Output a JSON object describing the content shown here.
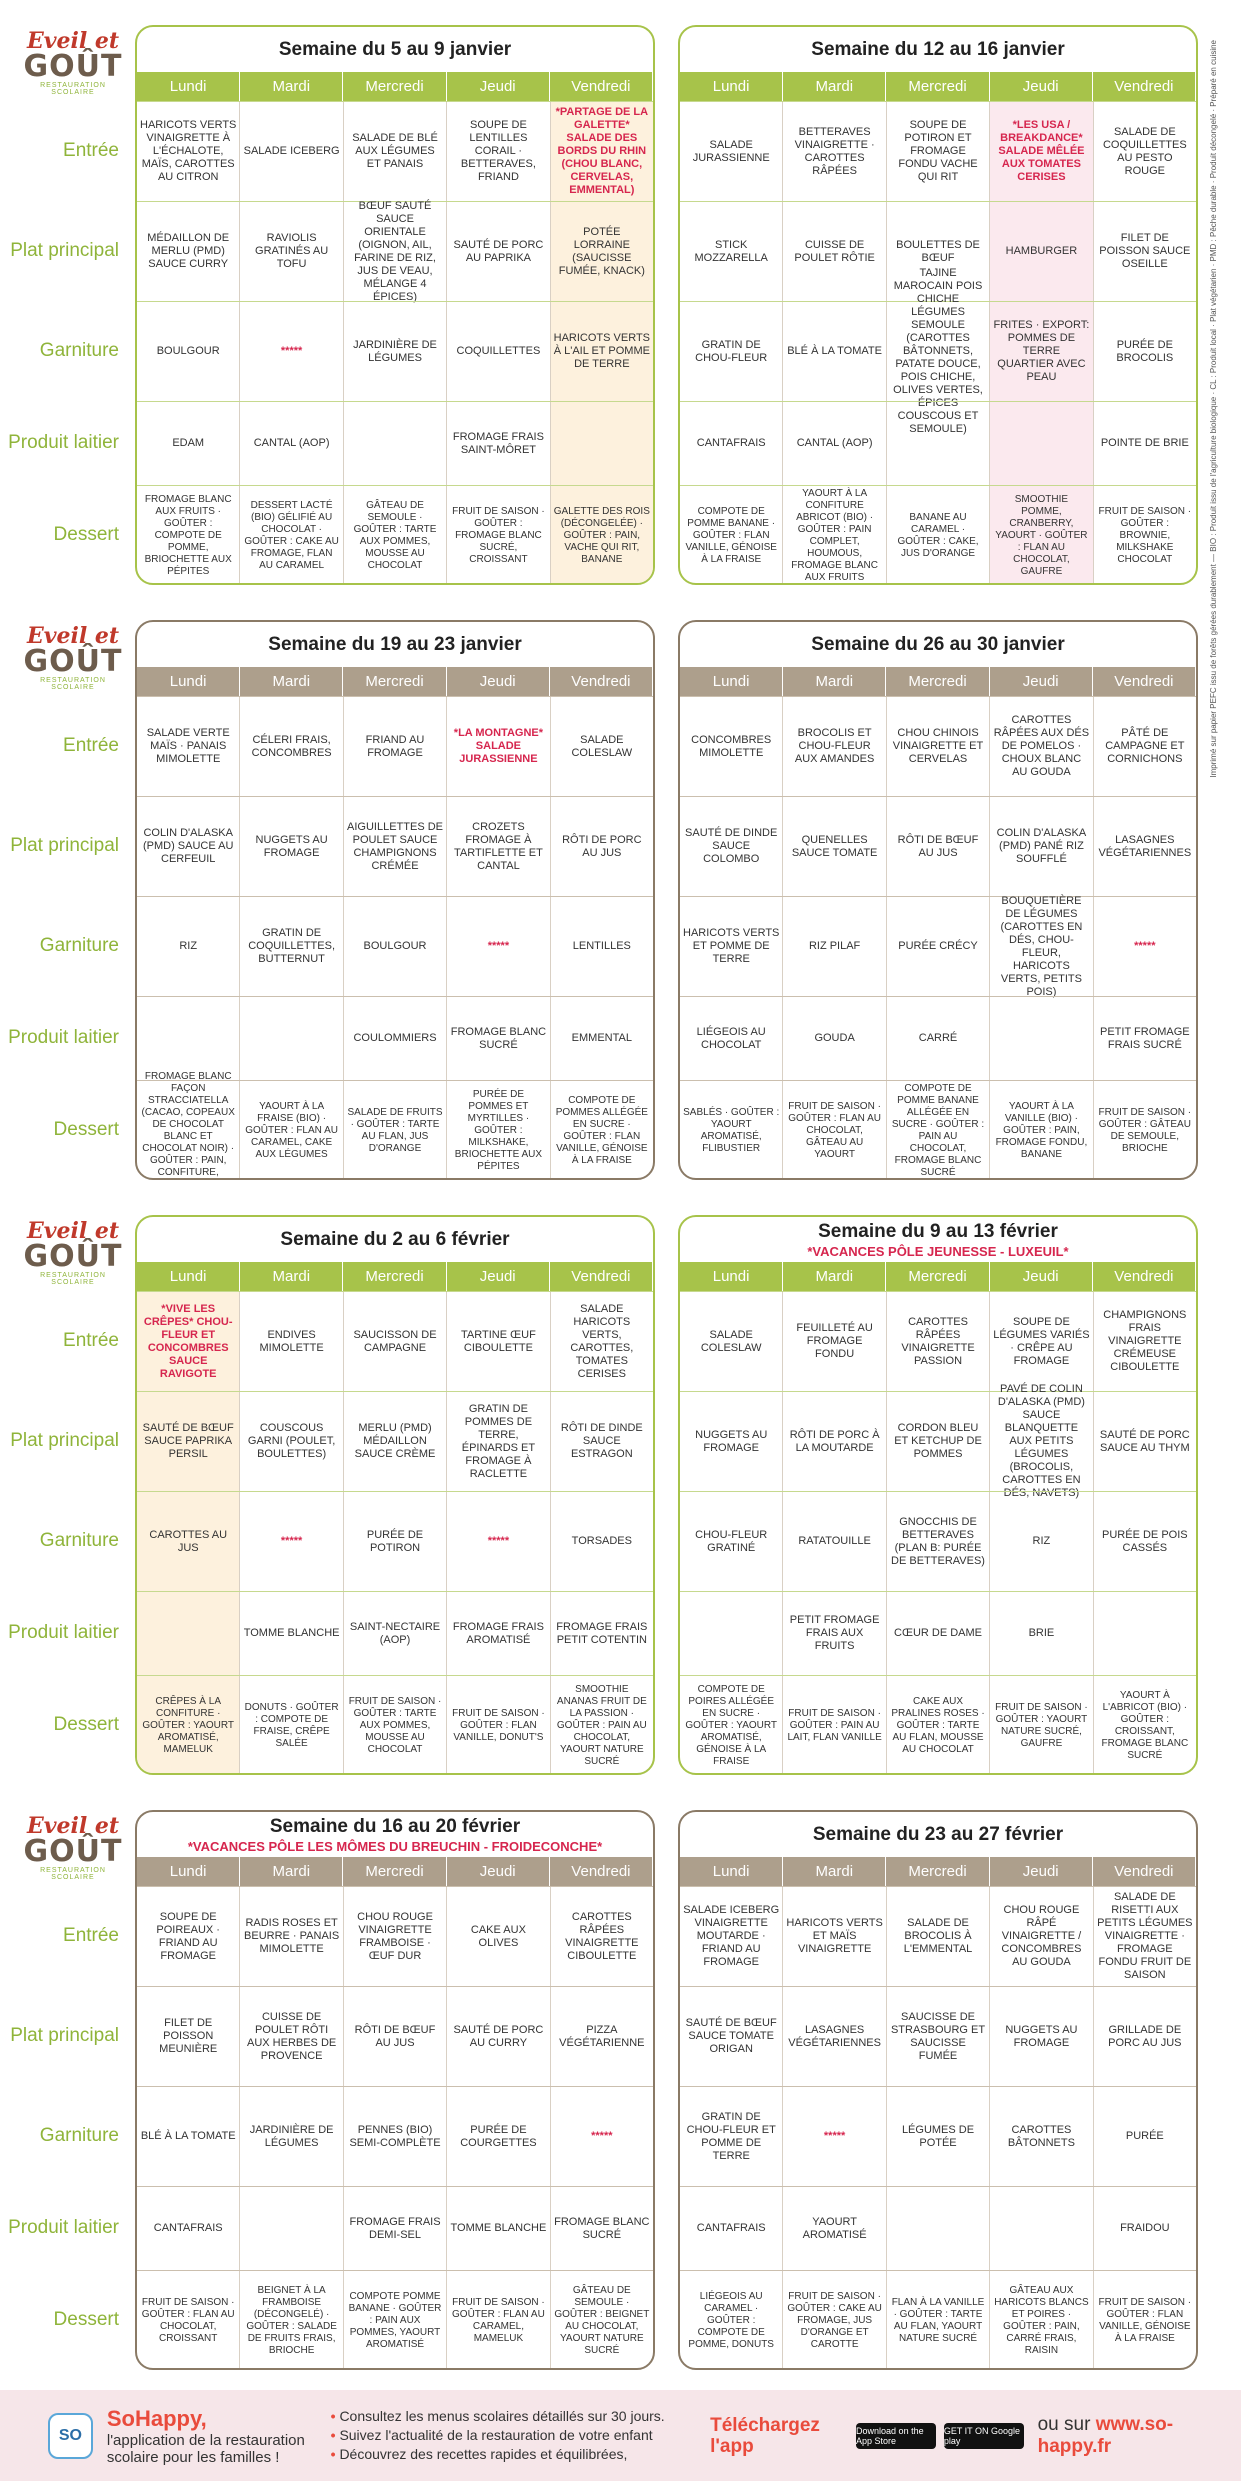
{
  "brand": {
    "l1": "Eveil et",
    "l2": "GOÛT",
    "l3": "RESTAURATION SCOLAIRE"
  },
  "categories": [
    "Entrée",
    "Plat principal",
    "Garniture",
    "Produit laitier",
    "Dessert"
  ],
  "days": [
    "Lundi",
    "Mardi",
    "Mercredi",
    "Jeudi",
    "Vendredi"
  ],
  "side_text": "Imprimé sur papier PEFC issu de forêts gérées durablement",
  "legend": "BIO : Produit issu de l'agriculture biologique · CL : Produit local · Plat végétarien · PMD : Pêche durable · Produit décongelé · Préparé en cuisine",
  "weeks": [
    {
      "title": "Semaine du 5 au 9 janvier",
      "sub": "",
      "rows": [
        [
          "HARICOTS VERTS VINAIGRETTE À L'ÉCHALOTE, MAÏS, CAROTTES AU CITRON",
          "SALADE ICEBERG",
          "SALADE DE BLÉ AUX LÉGUMES ET PANAIS",
          "SOUPE DE LENTILLES CORAIL · BETTERAVES, FRIAND",
          "*PARTAGE DE LA GALETTE* SALADE DES BORDS DU RHIN (CHOU BLANC, CERVELAS, EMMENTAL)"
        ],
        [
          "MÉDAILLON DE MERLU (PMD) SAUCE CURRY",
          "RAVIOLIS GRATINÉS AU TOFU",
          "BŒUF SAUTÉ SAUCE ORIENTALE (OIGNON, AIL, FARINE DE RIZ, JUS DE VEAU, MÉLANGE 4 ÉPICES)",
          "SAUTÉ DE PORC AU PAPRIKA",
          "POTÉE LORRAINE (SAUCISSE FUMÉE, KNACK)"
        ],
        [
          "BOULGOUR",
          "*****",
          "JARDINIÈRE DE LÉGUMES",
          "COQUILLETTES",
          "HARICOTS VERTS À L'AIL ET POMME DE TERRE"
        ],
        [
          "EDAM",
          "CANTAL (AOP)",
          "",
          "FROMAGE FRAIS SAINT-MÔRET",
          ""
        ],
        [
          "FROMAGE BLANC AUX FRUITS · GOÛTER : COMPOTE DE POMME, BRIOCHETTE AUX PÉPITES",
          "DESSERT LACTÉ (BIO) GÉLIFIÉ AU CHOCOLAT · GOÛTER : CAKE AU FROMAGE, FLAN AU CARAMEL",
          "GÂTEAU DE SEMOULE · GOÛTER : TARTE AUX POMMES, MOUSSE AU CHOCOLAT",
          "FRUIT DE SAISON · GOÛTER : FROMAGE BLANC SUCRÉ, CROISSANT",
          "GALETTE DES ROIS (DÉCONGELÉE) · GOÛTER : PAIN, VACHE QUI RIT, BANANE"
        ]
      ]
    },
    {
      "title": "Semaine du 12 au 16 janvier",
      "sub": "",
      "rows": [
        [
          "SALADE JURASSIENNE",
          "BETTERAVES VINAIGRETTE · CAROTTES RÂPÉES",
          "SOUPE DE POTIRON ET FROMAGE FONDU VACHE QUI RIT",
          "*LES USA / BREAKDANCE* SALADE MÊLÉE AUX TOMATES CERISES",
          "SALADE DE COQUILLETTES AU PESTO ROUGE"
        ],
        [
          "STICK MOZZARELLA",
          "CUISSE DE POULET RÔTIE",
          "BOULETTES DE BŒUF",
          "HAMBURGER",
          "FILET DE POISSON SAUCE OSEILLE"
        ],
        [
          "GRATIN DE CHOU-FLEUR",
          "BLÉ À LA TOMATE",
          "TAJINE MAROCAIN POIS CHICHE LÉGUMES SEMOULE (CAROTTES BÂTONNETS, PATATE DOUCE, POIS CHICHE, OLIVES VERTES, ÉPICES COUSCOUS ET SEMOULE)",
          "FRITES · EXPORT: POMMES DE TERRE QUARTIER AVEC PEAU",
          "PURÉE DE BROCOLIS"
        ],
        [
          "CANTAFRAIS",
          "CANTAL (AOP)",
          "",
          "",
          "POINTE DE BRIE"
        ],
        [
          "COMPOTE DE POMME BANANE · GOÛTER : FLAN VANILLE, GÉNOISE À LA FRAISE",
          "YAOURT À LA CONFITURE ABRICOT (BIO) · GOÛTER : PAIN COMPLET, HOUMOUS, FROMAGE BLANC AUX FRUITS",
          "BANANE AU CARAMEL · GOÛTER : CAKE, JUS D'ORANGE",
          "SMOOTHIE POMME, CRANBERRY, YAOURT · GOÛTER : FLAN AU CHOCOLAT, GAUFRE",
          "FRUIT DE SAISON · GOÛTER : BROWNIE, MILKSHAKE CHOCOLAT"
        ]
      ]
    },
    {
      "title": "Semaine du 19 au 23 janvier",
      "sub": "",
      "rows": [
        [
          "SALADE VERTE MAÏS · PANAIS MIMOLETTE",
          "CÉLERI FRAIS, CONCOMBRES",
          "FRIAND AU FROMAGE",
          "*LA MONTAGNE* SALADE JURASSIENNE",
          "SALADE COLESLAW"
        ],
        [
          "COLIN D'ALASKA (PMD) SAUCE AU CERFEUIL",
          "NUGGETS AU FROMAGE",
          "AIGUILLETTES DE POULET SAUCE CHAMPIGNONS CRÉMÉE",
          "CROZETS FROMAGE À TARTIFLETTE ET CANTAL",
          "RÔTI DE PORC AU JUS"
        ],
        [
          "RIZ",
          "GRATIN DE COQUILLETTES, BUTTERNUT",
          "BOULGOUR",
          "*****",
          "LENTILLES"
        ],
        [
          "",
          "",
          "COULOMMIERS",
          "FROMAGE BLANC SUCRÉ",
          "EMMENTAL"
        ],
        [
          "FROMAGE BLANC FAÇON STRACCIATELLA (CACAO, COPEAUX DE CHOCOLAT BLANC ET CHOCOLAT NOIR) · GOÛTER : PAIN, CONFITURE, BANANE",
          "YAOURT À LA FRAISE (BIO) · GOÛTER : FLAN AU CARAMEL, CAKE AUX LÉGUMES",
          "SALADE DE FRUITS · GOÛTER : TARTE AU FLAN, JUS D'ORANGE",
          "PURÉE DE POMMES ET MYRTILLES · GOÛTER : MILKSHAKE, BRIOCHETTE AUX PÉPITES",
          "COMPOTE DE POMMES ALLÉGÉE EN SUCRE · GOÛTER : FLAN VANILLE, GÉNOISE À LA FRAISE"
        ]
      ]
    },
    {
      "title": "Semaine du 26 au 30 janvier",
      "sub": "",
      "rows": [
        [
          "CONCOMBRES MIMOLETTE",
          "BROCOLIS ET CHOU-FLEUR AUX AMANDES",
          "CHOU CHINOIS VINAIGRETTE ET CERVELAS",
          "CAROTTES RÂPÉES AUX DÉS DE POMELOS · CHOUX BLANC AU GOUDA",
          "PÂTÉ DE CAMPAGNE ET CORNICHONS"
        ],
        [
          "SAUTÉ DE DINDE SAUCE COLOMBO",
          "QUENELLES SAUCE TOMATE",
          "RÔTI DE BŒUF AU JUS",
          "COLIN D'ALASKA (PMD) PANÉ RIZ SOUFFLÉ",
          "LASAGNES VÉGÉTARIENNES"
        ],
        [
          "HARICOTS VERTS ET POMME DE TERRE",
          "RIZ PILAF",
          "PURÉE CRÉCY",
          "BOUQUETIÈRE DE LÉGUMES (CAROTTES EN DÉS, CHOU-FLEUR, HARICOTS VERTS, PETITS POIS)",
          "*****"
        ],
        [
          "LIÉGEOIS AU CHOCOLAT",
          "GOUDA",
          "CARRÉ",
          "",
          "PETIT FROMAGE FRAIS SUCRÉ"
        ],
        [
          "SABLÉS · GOÛTER : YAOURT AROMATISÉ, FLIBUSTIER",
          "FRUIT DE SAISON · GOÛTER : FLAN AU CHOCOLAT, GÂTEAU AU YAOURT",
          "COMPOTE DE POMME BANANE ALLÉGÉE EN SUCRE · GOÛTER : PAIN AU CHOCOLAT, FROMAGE BLANC SUCRÉ",
          "YAOURT À LA VANILLE (BIO) · GOÛTER : PAIN, FROMAGE FONDU, BANANE",
          "FRUIT DE SAISON · GOÛTER : GÂTEAU DE SEMOULE, BRIOCHE"
        ]
      ]
    },
    {
      "title": "Semaine du 2 au 6 février",
      "sub": "",
      "rows": [
        [
          "*VIVE LES CRÊPES* CHOU-FLEUR ET CONCOMBRES SAUCE RAVIGOTE",
          "ENDIVES MIMOLETTE",
          "SAUCISSON DE CAMPAGNE",
          "TARTINE ŒUF CIBOULETTE",
          "SALADE HARICOTS VERTS, CAROTTES, TOMATES CERISES"
        ],
        [
          "SAUTÉ DE BŒUF SAUCE PAPRIKA PERSIL",
          "COUSCOUS GARNI (POULET, BOULETTES)",
          "MERLU (PMD) MÉDAILLON SAUCE CRÈME",
          "GRATIN DE POMMES DE TERRE, ÉPINARDS ET FROMAGE À RACLETTE",
          "RÔTI DE DINDE SAUCE ESTRAGON"
        ],
        [
          "CAROTTES AU JUS",
          "*****",
          "PURÉE DE POTIRON",
          "*****",
          "TORSADES"
        ],
        [
          "",
          "TOMME BLANCHE",
          "SAINT-NECTAIRE (AOP)",
          "FROMAGE FRAIS AROMATISÉ",
          "FROMAGE FRAIS PETIT COTENTIN"
        ],
        [
          "CRÊPES À LA CONFITURE · GOÛTER : YAOURT AROMATISÉ, MAMELUK",
          "DONUTS · GOÛTER : COMPOTE DE FRAISE, CRÊPE SALÉE",
          "FRUIT DE SAISON · GOÛTER : TARTE AUX POMMES, MOUSSE AU CHOCOLAT",
          "FRUIT DE SAISON · GOÛTER : FLAN VANILLE, DONUT'S",
          "SMOOTHIE ANANAS FRUIT DE LA PASSION · GOÛTER : PAIN AU CHOCOLAT, YAOURT NATURE SUCRÉ"
        ]
      ]
    },
    {
      "title": "Semaine du 9 au 13 février",
      "sub": "*VACANCES PÔLE JEUNESSE - LUXEUIL*",
      "rows": [
        [
          "SALADE COLESLAW",
          "FEUILLETÉ AU FROMAGE FONDU",
          "CAROTTES RÂPÉES VINAIGRETTE PASSION",
          "SOUPE DE LÉGUMES VARIÉS · CRÊPE AU FROMAGE",
          "CHAMPIGNONS FRAIS VINAIGRETTE CRÉMEUSE CIBOULETTE"
        ],
        [
          "NUGGETS AU FROMAGE",
          "RÔTI DE PORC À LA MOUTARDE",
          "CORDON BLEU ET KETCHUP DE POMMES",
          "PAVÉ DE COLIN D'ALASKA (PMD) SAUCE BLANQUETTE AUX PETITS LÉGUMES (BROCOLIS, CAROTTES EN DÉS, NAVETS)",
          "SAUTÉ DE PORC SAUCE AU THYM"
        ],
        [
          "CHOU-FLEUR GRATINÉ",
          "RATATOUILLE",
          "GNOCCHIS DE BETTERAVES (PLAN B: PURÉE DE BETTERAVES)",
          "RIZ",
          "PURÉE DE POIS CASSÉS"
        ],
        [
          "",
          "PETIT FROMAGE FRAIS AUX FRUITS",
          "CŒUR DE DAME",
          "BRIE",
          ""
        ],
        [
          "COMPOTE DE POIRES ALLÉGÉE EN SUCRE · GOÛTER : YAOURT AROMATISÉ, GÉNOISE À LA FRAISE",
          "FRUIT DE SAISON · GOÛTER : PAIN AU LAIT, FLAN VANILLE",
          "CAKE AUX PRALINES ROSES · GOÛTER : TARTE AU FLAN, MOUSSE AU CHOCOLAT",
          "FRUIT DE SAISON · GOÛTER : YAOURT NATURE SUCRÉ, GAUFRE",
          "YAOURT À L'ABRICOT (BIO) · GOÛTER : CROISSANT, FROMAGE BLANC SUCRÉ"
        ]
      ]
    },
    {
      "title": "Semaine du 16 au 20 février",
      "sub": "*VACANCES PÔLE LES MÔMES DU BREUCHIN - FROIDECONCHE*",
      "rows": [
        [
          "SOUPE DE POIREAUX · FRIAND AU FROMAGE",
          "RADIS ROSES ET BEURRE · PANAIS MIMOLETTE",
          "CHOU ROUGE VINAIGRETTE FRAMBOISE · ŒUF DUR",
          "CAKE AUX OLIVES",
          "CAROTTES RÂPÉES VINAIGRETTE CIBOULETTE"
        ],
        [
          "FILET DE POISSON MEUNIÈRE",
          "CUISSE DE POULET RÔTI AUX HERBES DE PROVENCE",
          "RÔTI DE BŒUF AU JUS",
          "SAUTÉ DE PORC AU CURRY",
          "PIZZA VÉGÉTARIENNE"
        ],
        [
          "BLÉ À LA TOMATE",
          "JARDINIÈRE DE LÉGUMES",
          "PENNES (BIO) SEMI-COMPLÈTE",
          "PURÉE DE COURGETTES",
          "*****"
        ],
        [
          "CANTAFRAIS",
          "",
          "FROMAGE FRAIS DEMI-SEL",
          "TOMME BLANCHE",
          "FROMAGE BLANC SUCRÉ"
        ],
        [
          "FRUIT DE SAISON · GOÛTER : FLAN AU CHOCOLAT, CROISSANT",
          "BEIGNET À LA FRAMBOISE (DÉCONGELÉ) · GOÛTER : SALADE DE FRUITS FRAIS, BRIOCHE",
          "COMPOTE POMME BANANE · GOÛTER : PAIN AUX POMMES, YAOURT AROMATISÉ",
          "FRUIT DE SAISON · GOÛTER : FLAN AU CARAMEL, MAMELUK",
          "GÂTEAU DE SEMOULE · GOÛTER : BEIGNET AU CHOCOLAT, YAOURT NATURE SUCRÉ"
        ]
      ]
    },
    {
      "title": "Semaine du 23 au 27 février",
      "sub": "",
      "rows": [
        [
          "SALADE ICEBERG VINAIGRETTE MOUTARDE · FRIAND AU FROMAGE",
          "HARICOTS VERTS ET MAÏS VINAIGRETTE",
          "SALADE DE BROCOLIS À L'EMMENTAL",
          "CHOU ROUGE RÂPÉ VINAIGRETTE / CONCOMBRES AU GOUDA",
          "SALADE DE RISETTI AUX PETITS LÉGUMES VINAIGRETTE · FROMAGE FONDU FRUIT DE SAISON"
        ],
        [
          "SAUTÉ DE BŒUF SAUCE TOMATE ORIGAN",
          "LASAGNES VÉGÉTARIENNES",
          "SAUCISSE DE STRASBOURG ET SAUCISSE FUMÉE",
          "NUGGETS AU FROMAGE",
          "GRILLADE DE PORC AU JUS"
        ],
        [
          "GRATIN DE CHOU-FLEUR ET POMME DE TERRE",
          "*****",
          "LÉGUMES DE POTÉE",
          "CAROTTES BÂTONNETS",
          "PURÉE"
        ],
        [
          "CANTAFRAIS",
          "YAOURT AROMATISÉ",
          "",
          "",
          "FRAIDOU"
        ],
        [
          "LIÉGEOIS AU CARAMEL · GOÛTER : COMPOTE DE POMME, DONUTS",
          "FRUIT DE SAISON · GOÛTER : CAKE AU FROMAGE, JUS D'ORANGE ET CAROTTE",
          "FLAN À LA VANILLE · GOÛTER : TARTE AU FLAN, YAOURT NATURE SUCRÉ",
          "GÂTEAU AUX HARICOTS BLANCS ET POIRES · GOÛTER : PAIN, CARRÉ FRAIS, RAISIN",
          "FRUIT DE SAISON · GOÛTER : FLAN VANILLE, GÉNOISE À LA FRAISE"
        ]
      ]
    }
  ],
  "footer": {
    "logo": "SO",
    "name": "SoHappy,",
    "desc": "l'application de la restauration scolaire pour les familles !",
    "b1": "Consultez les menus scolaires détaillés sur 30 jours.",
    "b2": "Suivez l'actualité de la restauration de votre enfant",
    "b3": "Découvrez des recettes rapides et équilibrées,",
    "dl": "Téléchargez l'app",
    "appstore": "Download on the App Store",
    "gplay": "GET IT ON Google play",
    "ou": "ou sur",
    "web": "www.so-happy.fr"
  }
}
